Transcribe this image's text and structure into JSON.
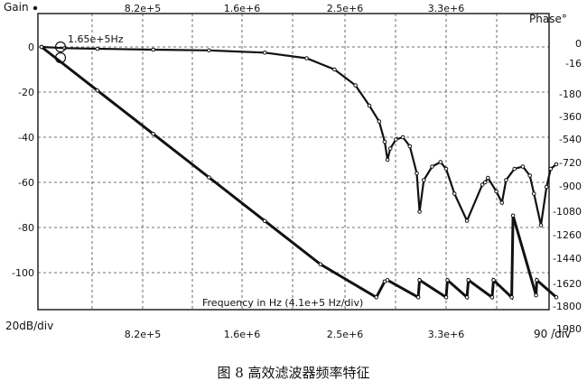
{
  "chart_data": {
    "type": "line",
    "left_axis_title": "Gain",
    "right_axis_title": "Phase°",
    "x_ticks_top": [
      "8.2e+5",
      "1.6e+6",
      "2.5e+6",
      "3.3e+6"
    ],
    "x_ticks_bottom": [
      "8.2e+5",
      "1.6e+6",
      "2.5e+6",
      "3.3e+6"
    ],
    "bottom_left_label": "20dB/div",
    "bottom_right_label": "90 /div",
    "xlabel": "Frequency in Hz (4.1e+5 Hz/div)",
    "y_ticks_left": [
      "0",
      "-20",
      "-40",
      "-60",
      "-80",
      "-100"
    ],
    "y_ticks_right": [
      "0",
      "-16",
      "-180",
      "-360",
      "-540",
      "-720",
      "-900",
      "-1080",
      "-1260",
      "-1440",
      "-1620",
      "-1800",
      "-1980"
    ],
    "annotation": "1.65e+5Hz",
    "caption": "图 8  高效滤波器频率特征",
    "xlim": [
      0,
      3690000
    ],
    "ylim_gain": [
      -120,
      5
    ],
    "ylim_phase": [
      -1980,
      90
    ],
    "grid": true,
    "series": [
      {
        "axis": "left",
        "unit": "dB",
        "x": [
          0,
          165000,
          400000,
          800000,
          1200000,
          1600000,
          1900000,
          2100000,
          2250000,
          2350000,
          2420000,
          2460000,
          2480000,
          2500000,
          2540000,
          2590000,
          2640000,
          2690000,
          2710000,
          2740000,
          2800000,
          2860000,
          2900000,
          2960000,
          3050000,
          3160000,
          3180000,
          3200000,
          3260000,
          3300000,
          3330000,
          3390000,
          3450000,
          3500000,
          3530000,
          3580000,
          3620000,
          3650000,
          3690000
        ],
        "y": [
          0,
          -0.5,
          -0.8,
          -1.2,
          -1.5,
          -2.5,
          -5,
          -10,
          -17,
          -26,
          -33,
          -42,
          -50,
          -45,
          -41,
          -40,
          -44,
          -56,
          -73,
          -59,
          -53,
          -51,
          -54,
          -65,
          -77,
          -61,
          -60,
          -58,
          -64,
          -69,
          -59,
          -54,
          -53,
          -57,
          -65,
          -79,
          -62,
          -54,
          -52
        ]
      },
      {
        "axis": "right",
        "unit": "degrees",
        "x": [
          0,
          400000,
          800000,
          1200000,
          1600000,
          2000000,
          2400000,
          2460000,
          2480000,
          2700000,
          2710000,
          2900000,
          2910000,
          3050000,
          3060000,
          3230000,
          3240000,
          3370000,
          3380000,
          3545000,
          3550000,
          3690000
        ],
        "y": [
          0,
          -330,
          -660,
          -990,
          -1320,
          -1650,
          -1900,
          -1780,
          -1770,
          -1900,
          -1770,
          -1900,
          -1770,
          -1900,
          -1770,
          -1900,
          -1770,
          -1900,
          -1280,
          -1885,
          -1770,
          -1900
        ]
      }
    ]
  }
}
